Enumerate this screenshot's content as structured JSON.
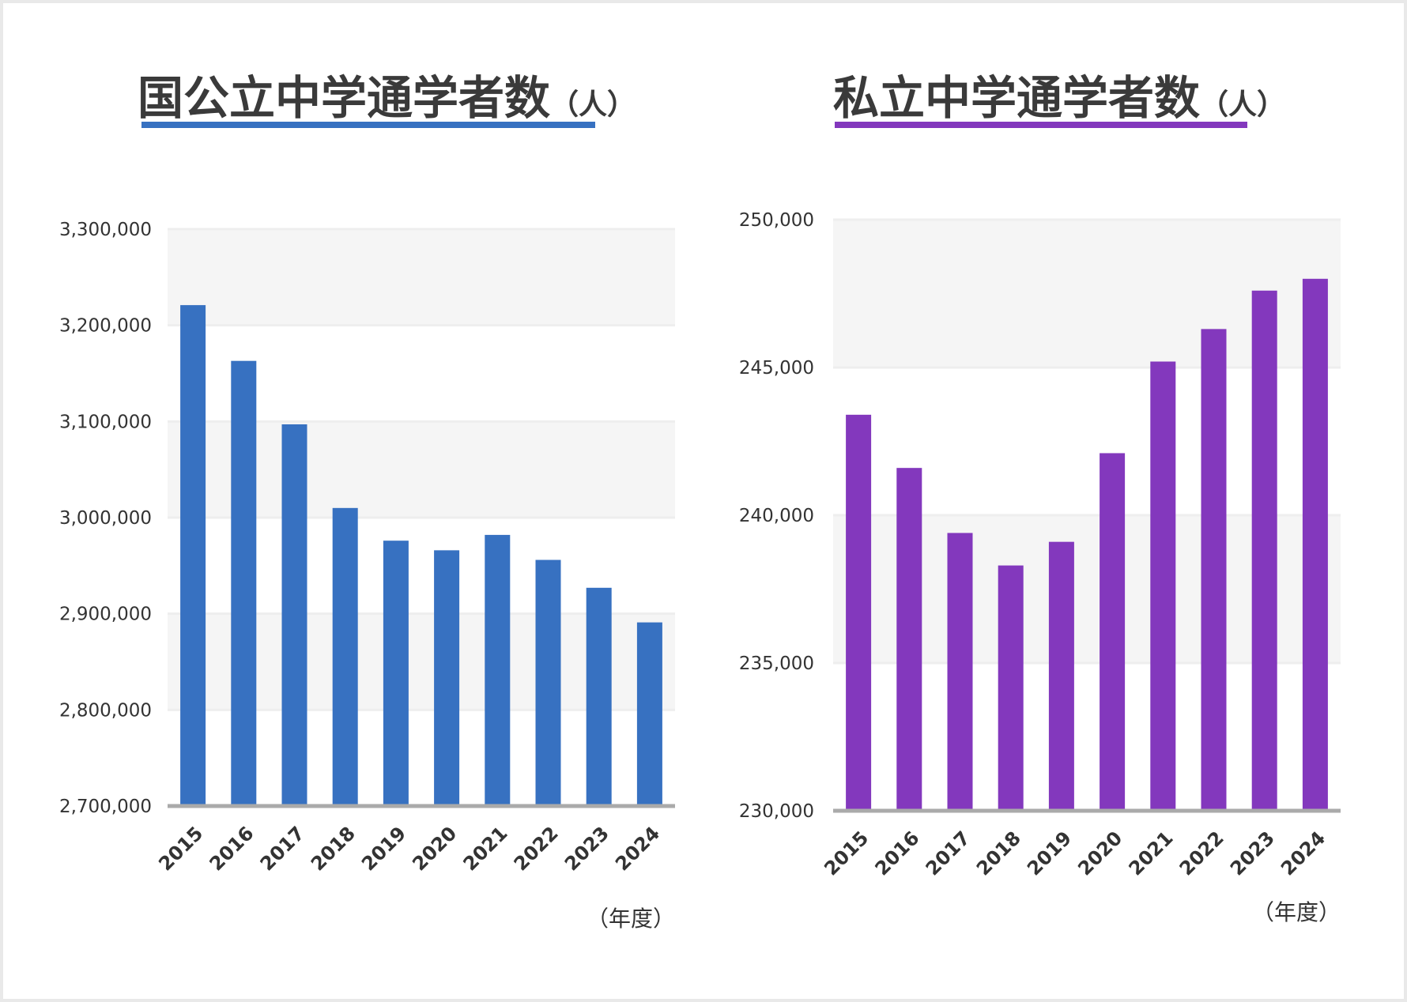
{
  "colors": {
    "left_bar": "#3771c1",
    "right_bar": "#8338bd",
    "band": "#f5f5f5",
    "gridline": "#eeeeee",
    "baseline": "#aaaaaa"
  },
  "chart_data": [
    {
      "type": "bar",
      "title": "国公立中学通学者数",
      "title_unit": "（人）",
      "x_unit_label": "（年度）",
      "categories": [
        "2015",
        "2016",
        "2017",
        "2018",
        "2019",
        "2020",
        "2021",
        "2022",
        "2023",
        "2024"
      ],
      "series": [
        {
          "values": [
            3221000,
            3163000,
            3097000,
            3010000,
            2976000,
            2966000,
            2982000,
            2956000,
            2927000,
            2891000
          ]
        }
      ],
      "yticks": [
        {
          "value": 3300000,
          "label": "3,300,000"
        },
        {
          "value": 3200000,
          "label": "3,200,000"
        },
        {
          "value": 3100000,
          "label": "3,100,000"
        },
        {
          "value": 3000000,
          "label": "3,000,000"
        },
        {
          "value": 2900000,
          "label": "2,900,000"
        },
        {
          "value": 2800000,
          "label": "2,800,000"
        },
        {
          "value": 2700000,
          "label": "2,700,000"
        }
      ],
      "ylim": [
        2700000,
        3300000
      ],
      "grid": true,
      "bar_color": "#3771c1"
    },
    {
      "type": "bar",
      "title": "私立中学通学者数",
      "title_unit": "（人）",
      "x_unit_label": "（年度）",
      "categories": [
        "2015",
        "2016",
        "2017",
        "2018",
        "2019",
        "2020",
        "2021",
        "2022",
        "2023",
        "2024"
      ],
      "series": [
        {
          "values": [
            243400,
            241600,
            239400,
            238300,
            239100,
            242100,
            245200,
            246300,
            247600,
            248000
          ]
        }
      ],
      "yticks": [
        {
          "value": 250000,
          "label": "250,000"
        },
        {
          "value": 245000,
          "label": "245,000"
        },
        {
          "value": 240000,
          "label": "240,000"
        },
        {
          "value": 235000,
          "label": "235,000"
        },
        {
          "value": 230000,
          "label": "230,000"
        }
      ],
      "ylim": [
        230000,
        250000
      ],
      "grid": true,
      "bar_color": "#8338bd"
    }
  ]
}
